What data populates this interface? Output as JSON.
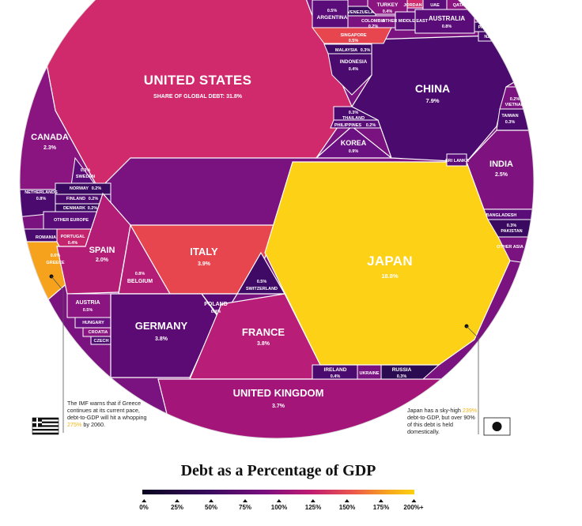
{
  "countries": {
    "usa": {
      "name": "UNITED STATES",
      "value": "SHARE OF GLOBAL DEBT: 31.8%"
    },
    "japan": {
      "name": "JAPAN",
      "value": "18.8%"
    },
    "china": {
      "name": "CHINA",
      "value": "7.9%"
    },
    "uk": {
      "name": "UNITED KINGDOM",
      "value": "3.7%"
    },
    "france": {
      "name": "FRANCE",
      "value": "3.8%"
    },
    "germany": {
      "name": "GERMANY",
      "value": "3.8%"
    },
    "italy": {
      "name": "ITALY",
      "value": "3.9%"
    },
    "india": {
      "name": "INDIA",
      "value": "2.5%"
    },
    "canada": {
      "name": "CANADA",
      "value": "2.3%"
    },
    "spain": {
      "name": "SPAIN",
      "value": "2.0%"
    },
    "korea": {
      "name": "KOREA",
      "value": "0.9%"
    },
    "belgium": {
      "name": "BELGIUM",
      "value": "0.8%"
    },
    "australia": {
      "name": "AUSTRALIA",
      "value": "0.8%"
    },
    "greece": {
      "name": "GREECE",
      "value": "0.6%"
    },
    "netherlands": {
      "name": "NETHERLANDS",
      "value": "0.8%"
    },
    "switzerland": {
      "name": "SWITZERLAND",
      "value": "0.5%"
    },
    "austria": {
      "name": "AUSTRIA",
      "value": "0.5%"
    },
    "poland": {
      "name": "POLAND",
      "value": "0.4%"
    },
    "ireland": {
      "name": "IRELAND",
      "value": "0.4%"
    },
    "russia": {
      "name": "RUSSIA",
      "value": "0.3%"
    },
    "argentina": {
      "name": "ARGENTINA",
      "value": "0.5%"
    },
    "turkey": {
      "name": "TURKEY",
      "value": "0.4%"
    },
    "singapore": {
      "name": "SINGAPORE",
      "value": "0.5%"
    },
    "indonesia": {
      "name": "INDONESIA",
      "value": "0.4%"
    },
    "malaysia": {
      "name": "MALAYSIA",
      "value": "0.3%"
    },
    "thailand": {
      "name": "THAILAND",
      "value": "0.3%"
    },
    "philippines": {
      "name": "PHILIPPINES",
      "value": "0.2%"
    },
    "colombia": {
      "name": "COLOMBIA",
      "value": "0.2%"
    },
    "venezuela": {
      "name": "VENEZUELA"
    },
    "jordan": {
      "name": "JORDAN"
    },
    "uae": {
      "name": "UAE"
    },
    "qatar": {
      "name": "QATAR"
    },
    "other_middle_east": {
      "name": "OTHER MIDDLE EAST"
    },
    "pac_isles": {
      "name": "PAC ISLES"
    },
    "nz": {
      "name": "NZ"
    },
    "vietnam": {
      "name": "VIETNAM",
      "value": "0.2%"
    },
    "taiwan": {
      "name": "TAIWAN",
      "value": "0.3%"
    },
    "sri_lanka": {
      "name": "SRI LANKA"
    },
    "bangladesh": {
      "name": "BANGLADESH"
    },
    "pakistan": {
      "name": "PAKISTAN",
      "value": "0.3%"
    },
    "other_asia": {
      "name": "OTHER ASIA"
    },
    "sweden": {
      "name": "SWEDEN",
      "value": "0.3%"
    },
    "norway": {
      "name": "NORWAY",
      "value": "0.2%"
    },
    "finland": {
      "name": "FINLAND",
      "value": "0.2%"
    },
    "denmark": {
      "name": "DENMARK",
      "value": "0.2%"
    },
    "other_europe": {
      "name": "OTHER EUROPE"
    },
    "romania": {
      "name": "ROMANIA"
    },
    "portugal": {
      "name": "PORTUGAL",
      "value": "0.4%"
    },
    "hungary": {
      "name": "HUNGARY"
    },
    "croatia": {
      "name": "CROATIA"
    },
    "czech": {
      "name": "CZECH"
    },
    "ukraine": {
      "name": "UKRAINE"
    }
  },
  "notes": {
    "greece_pre": "The IMF warns that if Greece continues at its current pace, debt-to-GDP will hit a whopping ",
    "greece_hl": "275%",
    "greece_post": " by 2060.",
    "japan_pre": "Japan has a sky-high ",
    "japan_hl": "239%",
    "japan_post": " debt-to-GDP, but over 90% of this debt is held domestically."
  },
  "legend": {
    "title": "Debt as a Percentage of GDP",
    "ticks": [
      "0%",
      "25%",
      "50%",
      "75%",
      "100%",
      "125%",
      "150%",
      "175%",
      "200%+"
    ]
  },
  "colors": {
    "usa": "#d02a6c",
    "japan": "#fcd116",
    "china": "#4a0a6e",
    "italy": "#e8464f",
    "germany": "#5c0b75",
    "france": "#b81d78",
    "uk": "#a4157a",
    "india": "#7e1380",
    "canada": "#8a1480",
    "spain": "#b31d76",
    "korea": "#6b1081",
    "greece": "#f7a21c"
  }
}
